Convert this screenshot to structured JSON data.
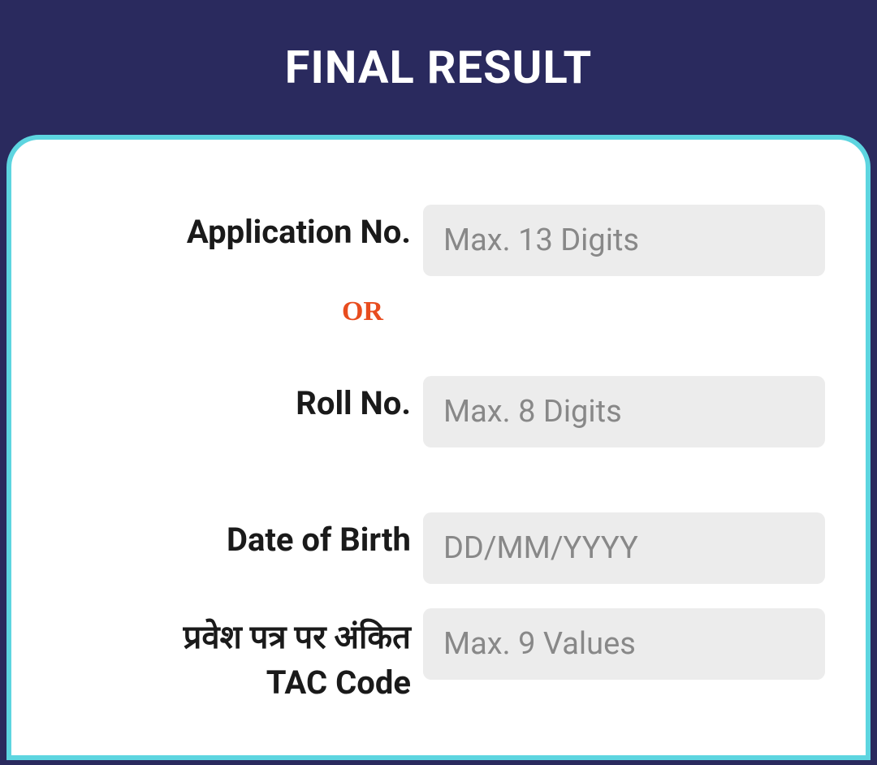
{
  "header": {
    "title": "FINAL RESULT"
  },
  "form": {
    "application_no": {
      "label": "Application No.",
      "placeholder": "Max. 13 Digits",
      "value": ""
    },
    "or_separator": "OR",
    "roll_no": {
      "label": "Roll No.",
      "placeholder": "Max. 8 Digits",
      "value": ""
    },
    "date_of_birth": {
      "label": "Date of Birth",
      "placeholder": "DD/MM/YYYY",
      "value": ""
    },
    "tac_code": {
      "label_line1": "प्रवेश पत्र पर अंकित",
      "label_line2": "TAC Code",
      "placeholder": "Max. 9 Values",
      "value": ""
    }
  },
  "colors": {
    "header_bg": "#2a2a5e",
    "border": "#5dd5e0",
    "input_bg": "#ececec",
    "or_text": "#e84c1e",
    "label_text": "#1a1a1a",
    "placeholder": "#888888"
  }
}
